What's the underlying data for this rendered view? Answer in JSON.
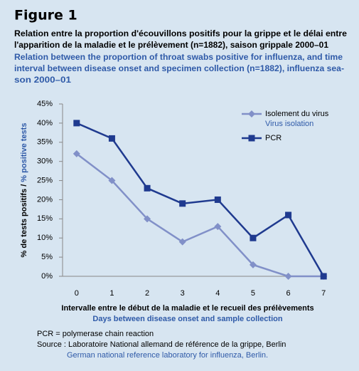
{
  "chart_data": {
    "type": "line",
    "title": "Figure 1",
    "subtitle_fr": [
      "Relation entre la proportion d'écouvillons positifs pour la grippe et le délai entre",
      "l'apparition de la maladie et le prélèvement (n=1882), saison grippale 2000–01"
    ],
    "subtitle_en": [
      "Relation between the proportion of throat swabs positive for influenza, and time",
      "interval between disease onset and specimen collection (n=1882), influenza sea-",
      "son 2000–01"
    ],
    "ylabel_fr": "% de tests positifs / ",
    "ylabel_en": "% positive tests",
    "xlabel_fr": "Intervalle entre le début de la maladie et le recueil des prélèvements",
    "xlabel_en": "Days between disease onset and sample collection",
    "categories": [
      "0",
      "1",
      "2",
      "3",
      "4",
      "5",
      "6",
      "7"
    ],
    "series": [
      {
        "name": "Isolement du virus",
        "name_en": "Virus isolation",
        "color": "#8190c8",
        "marker": "diamond",
        "values": [
          32,
          25,
          15,
          9,
          13,
          3,
          0,
          0
        ]
      },
      {
        "name": "PCR",
        "color": "#1f3a8f",
        "marker": "square",
        "values": [
          40,
          36,
          23,
          19,
          20,
          10,
          16,
          0
        ]
      }
    ],
    "ylim": [
      0,
      45
    ],
    "yticks": [
      {
        "value": 0,
        "label": "0%"
      },
      {
        "value": 5,
        "label": "5%"
      },
      {
        "value": 10,
        "label": "10%"
      },
      {
        "value": 15,
        "label": "15%"
      },
      {
        "value": 20,
        "label": "20%"
      },
      {
        "value": 25,
        "label": "25%"
      },
      {
        "value": 30,
        "label": "30%"
      },
      {
        "value": 35,
        "label": "35%"
      },
      {
        "value": 40,
        "label": "40%"
      },
      {
        "value": 45,
        "label": "45%"
      }
    ],
    "legend": "upper right",
    "notes": [
      "PCR = polymerase chain reaction",
      "Source : Laboratoire National allemand de référence de la grippe, Berlin"
    ],
    "notes_en": [
      "German national reference laboratory for influenza, Berlin."
    ]
  }
}
